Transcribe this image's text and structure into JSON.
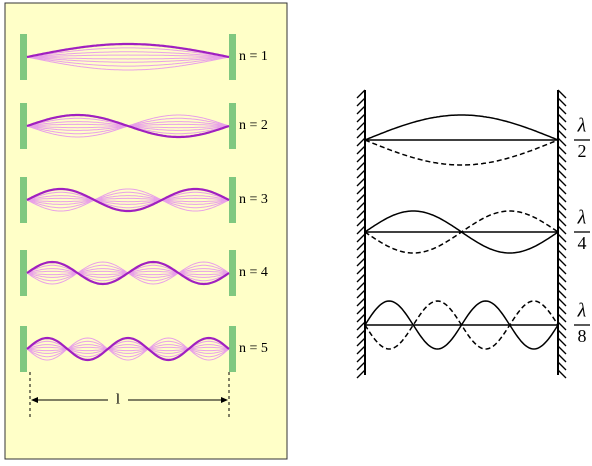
{
  "left": {
    "modes": [
      {
        "label": "n = 1"
      },
      {
        "label": "n = 2"
      },
      {
        "label": "n = 3"
      },
      {
        "label": "n = 4"
      },
      {
        "label": "n = 5"
      }
    ],
    "length_label": "l"
  },
  "right": {
    "modes": [
      {
        "numerator": "λ",
        "denominator": "2"
      },
      {
        "numerator": "λ",
        "denominator": "4"
      },
      {
        "numerator": "λ",
        "denominator": "8"
      }
    ]
  }
}
